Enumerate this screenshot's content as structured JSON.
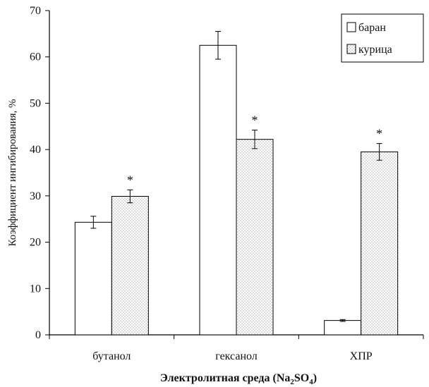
{
  "chart_data": {
    "type": "bar",
    "categories": [
      "бутанол",
      "гексанол",
      "ХПР"
    ],
    "series": [
      {
        "name": "баран",
        "pattern": "blank",
        "values": [
          24.3,
          62.5,
          3.1
        ],
        "errors": [
          1.3,
          3.0,
          0.2
        ]
      },
      {
        "name": "курица",
        "pattern": "dotted",
        "values": [
          29.9,
          42.2,
          39.5
        ],
        "errors": [
          1.4,
          2.0,
          1.8
        ]
      }
    ],
    "significance_marker": "*",
    "ylabel": "Коэффициент ингибирования, %",
    "xlabel": {
      "main": "Электролитная среда (Na",
      "sub1": "2",
      "mid": "SO",
      "sub2": "4",
      "end": ")"
    },
    "ylim": [
      0,
      70
    ],
    "yticks": [
      0,
      10,
      20,
      30,
      40,
      50,
      60,
      70
    ],
    "legend_position": "top-right",
    "grid": false,
    "colors": {
      "bar_stroke": "#000000",
      "bar_fill": "#ffffff",
      "dot": "#555555"
    }
  }
}
